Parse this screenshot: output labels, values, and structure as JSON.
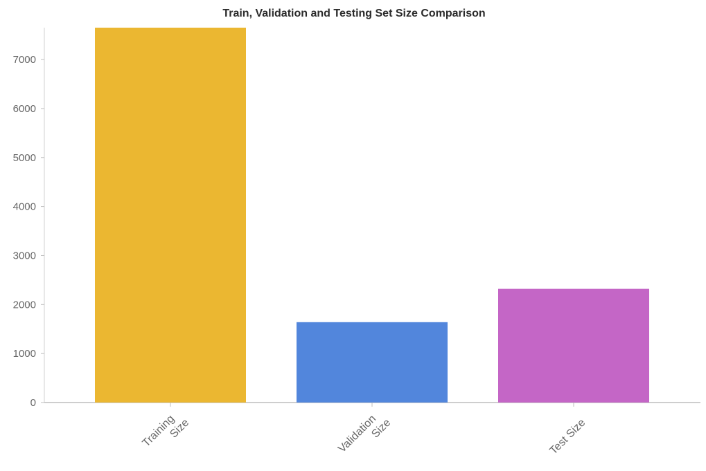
{
  "chart_data": {
    "type": "bar",
    "title": "Train, Validation and Testing Set Size Comparison",
    "xlabel": "",
    "ylabel": "",
    "categories": [
      "Training Size",
      "Validation Size",
      "Test Size"
    ],
    "category_label_lines": [
      [
        "Training",
        "Size"
      ],
      [
        "Validation",
        "Size"
      ],
      [
        "Test Size"
      ]
    ],
    "values": [
      7650,
      1640,
      2320
    ],
    "colors": [
      "#ebb731",
      "#5286dc",
      "#c466c6"
    ],
    "ylim": [
      0,
      7650
    ],
    "yticks": [
      0,
      1000,
      2000,
      3000,
      4000,
      5000,
      6000,
      7000
    ],
    "grid": false,
    "legend": "none"
  }
}
